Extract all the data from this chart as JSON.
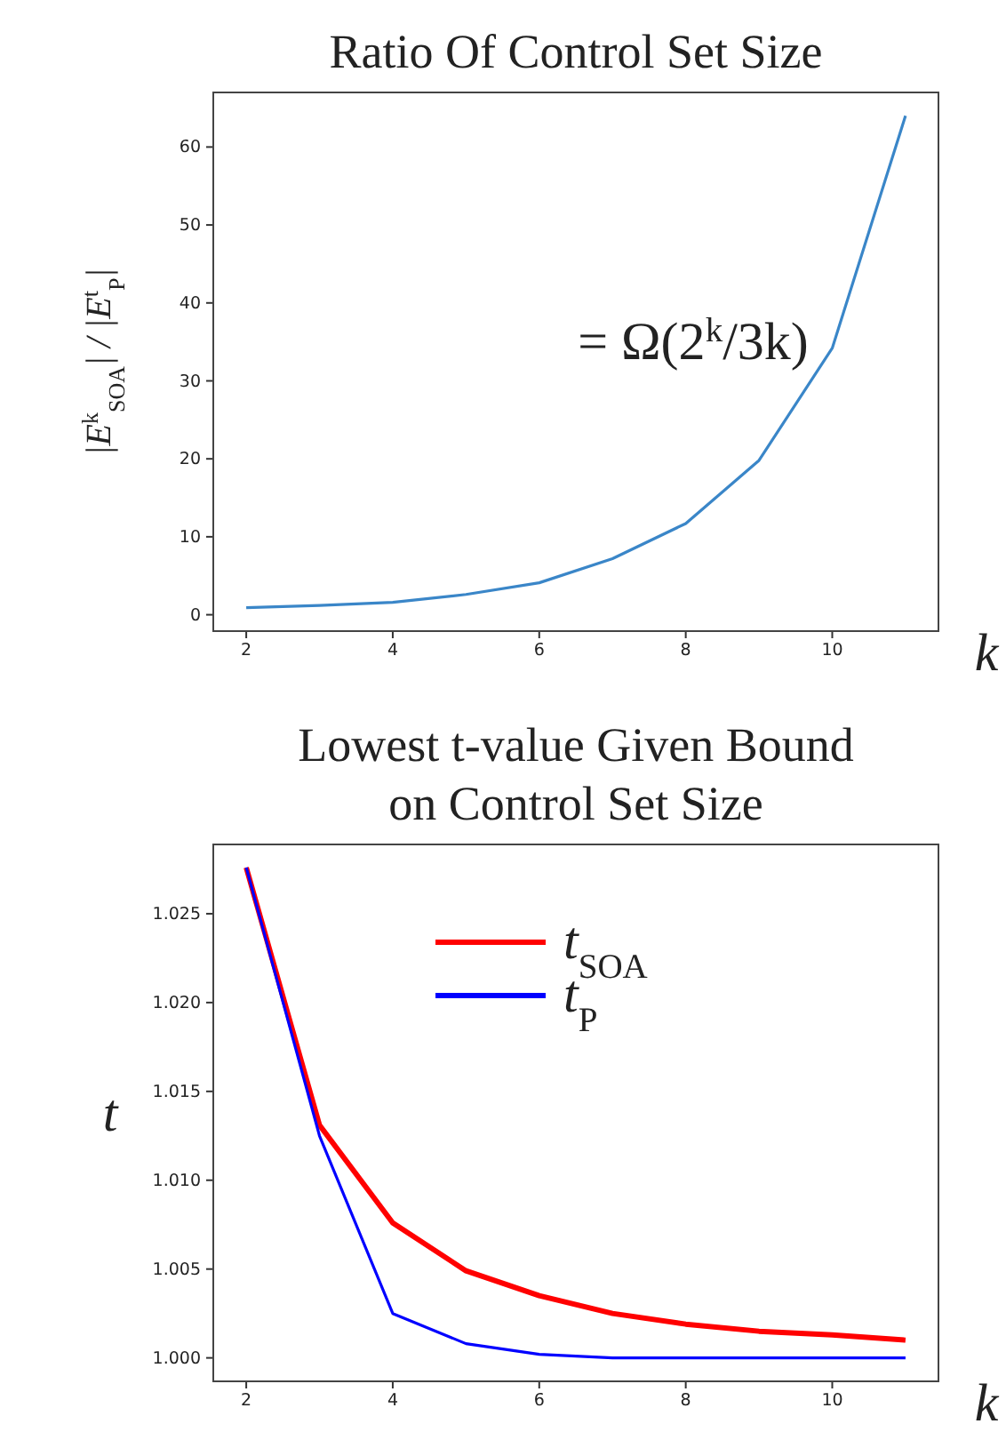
{
  "chart_data": [
    {
      "type": "line",
      "title": "Ratio Of Control Set Size",
      "xlabel": "k",
      "ylabel": "|E$^{k}$$_{SOA}$| / |E$^{t}$$_{P}$|",
      "x": [
        2,
        3,
        4,
        5,
        6,
        7,
        8,
        9,
        10,
        11
      ],
      "series": [
        {
          "color": "#3a86c8",
          "values": [
            0.9,
            1.2,
            1.6,
            2.6,
            4.1,
            7.2,
            11.7,
            19.8,
            34.2,
            64
          ]
        }
      ],
      "xlim": [
        1.55,
        11.45
      ],
      "xticks": [
        2,
        4,
        6,
        8,
        10
      ],
      "ylim": [
        -2.1,
        67
      ],
      "yticks": [
        0,
        10,
        20,
        30,
        40,
        50,
        60
      ],
      "annotations": [
        "= Ω(2$^{k}$/3k)"
      ],
      "grid": false,
      "legend": false
    },
    {
      "type": "line",
      "title": "Lowest t-value Given Bound on Control Set Size",
      "xlabel": "k",
      "ylabel": "t",
      "x": [
        2,
        3,
        4,
        5,
        6,
        7,
        8,
        9,
        10,
        11
      ],
      "series": [
        {
          "name": "t$_{SOA}$",
          "color": "#ff0000",
          "values": [
            1.0276,
            1.0131,
            1.0076,
            1.0049,
            1.0035,
            1.0025,
            1.0019,
            1.0015,
            1.0013,
            1.001
          ]
        },
        {
          "name": "t$_{P}$",
          "color": "#0000ff",
          "values": [
            1.0276,
            1.0125,
            1.0025,
            1.0008,
            1.0002,
            1.0,
            1.0,
            1.0,
            1.0,
            1.0
          ]
        }
      ],
      "xlim": [
        1.55,
        11.45
      ],
      "xticks": [
        2,
        4,
        6,
        8,
        10
      ],
      "ylim": [
        0.99868,
        1.0289
      ],
      "yticks": [
        {
          "value": 1.0,
          "label": "1.000"
        },
        {
          "value": 1.005,
          "label": "1.005"
        },
        {
          "value": 1.01,
          "label": "1.010"
        },
        {
          "value": 1.015,
          "label": "1.015"
        },
        {
          "value": 1.02,
          "label": "1.020"
        },
        {
          "value": 1.025,
          "label": "1.025"
        }
      ],
      "grid": false,
      "legend": "top"
    }
  ]
}
